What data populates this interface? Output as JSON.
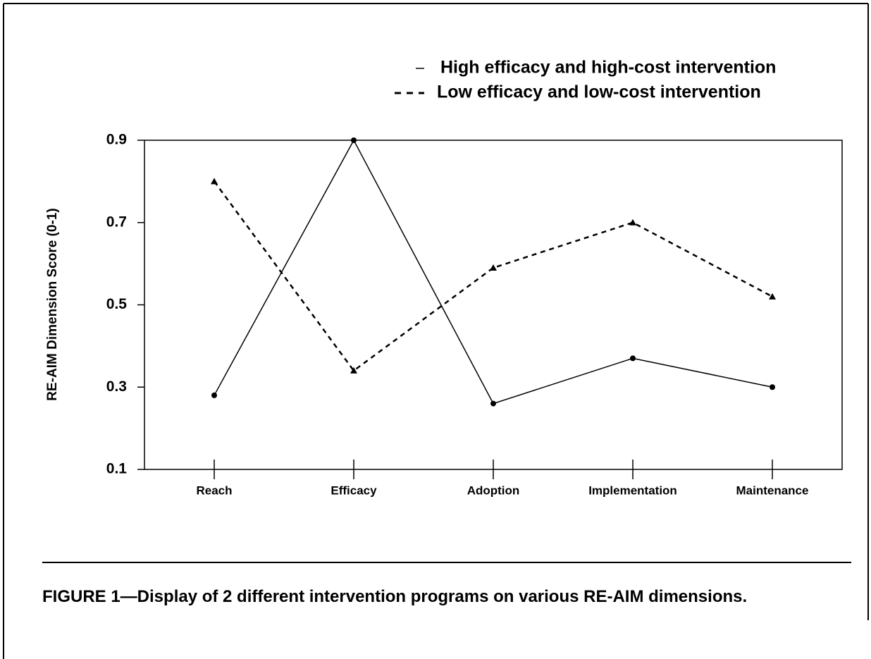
{
  "chart_data": {
    "type": "line",
    "ylabel": "RE-AIM Dimension Score  (0-1)",
    "categories": [
      "Reach",
      "Efficacy",
      "Adoption",
      "Implementation",
      "Maintenance"
    ],
    "series": [
      {
        "name": "High efficacy and high-cost intervention",
        "color": "#000000",
        "dash": "solid",
        "marker": "circle",
        "values": [
          0.28,
          0.9,
          0.26,
          0.37,
          0.3
        ]
      },
      {
        "name": "Low efficacy and low-cost intervention",
        "color": "#000000",
        "dash": "dashed",
        "marker": "triangle",
        "values": [
          0.8,
          0.34,
          0.59,
          0.7,
          0.52
        ]
      }
    ],
    "ylim": [
      0.1,
      0.9
    ],
    "yticks": [
      0.1,
      0.3,
      0.5,
      0.7,
      0.9
    ],
    "grid": false,
    "legend": "top right",
    "caption": "FIGURE 1—Display of 2 different intervention programs on various RE-AIM dimensions."
  }
}
